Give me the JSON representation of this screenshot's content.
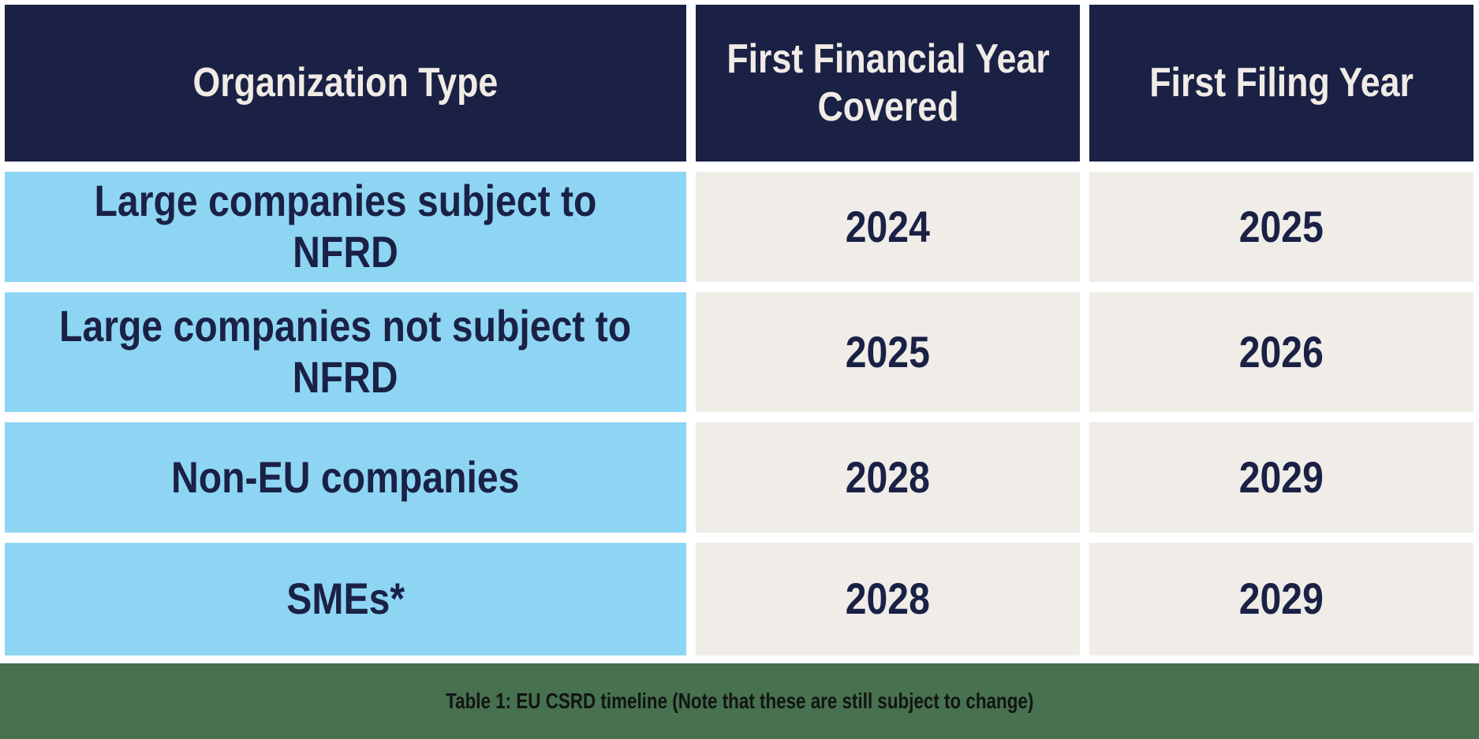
{
  "chart_data": {
    "type": "table",
    "title": "EU CSRD timeline",
    "columns": [
      "Organization Type",
      "First Financial Year\nCovered",
      "First Filing Year"
    ],
    "rows": [
      [
        "Large companies subject to NFRD",
        "2024",
        "2025"
      ],
      [
        "Large companies not subject to\nNFRD",
        "2025",
        "2026"
      ],
      [
        "Non-EU companies",
        "2028",
        "2029"
      ],
      [
        "SMEs*",
        "2028",
        "2029"
      ]
    ],
    "caption": "Table 1: EU CSRD timeline (Note that these are still subject to change)"
  },
  "colors": {
    "navy": "#1A2145",
    "blue": "#8ED5F4",
    "cream": "#F0ECE8",
    "green": "#47714F",
    "header_text": "#F0EBE5",
    "caption_text": "#121413",
    "page_bg": "#FFFFFF"
  }
}
